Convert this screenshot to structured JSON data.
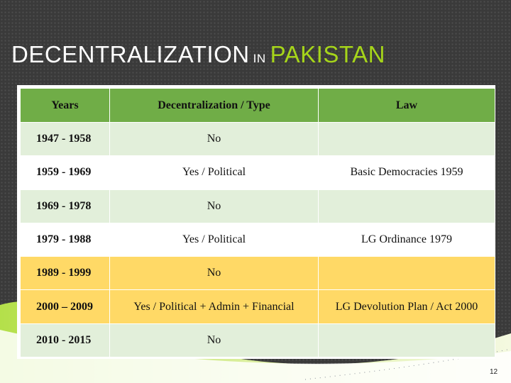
{
  "title": {
    "part1": "DECENTRALIZATION",
    "part2": "IN",
    "part3": "PAKISTAN"
  },
  "table": {
    "headers": [
      "Years",
      "Decentralization / Type",
      "Law"
    ],
    "rows": [
      {
        "years": "1947 - 1958",
        "type": "No",
        "law": ""
      },
      {
        "years": "1959 - 1969",
        "type": "Yes / Political",
        "law": "Basic Democracies 1959"
      },
      {
        "years": "1969 - 1978",
        "type": "No",
        "law": ""
      },
      {
        "years": "1979 - 1988",
        "type": "Yes / Political",
        "law": "LG Ordinance 1979"
      },
      {
        "years": "1989 - 1999",
        "type": "No",
        "law": ""
      },
      {
        "years": "2000 – 2009",
        "type": "Yes / Political + Admin + Financial",
        "law": "LG Devolution Plan / Act 2000"
      },
      {
        "years": "2010 - 2015",
        "type": "No",
        "law": ""
      }
    ]
  },
  "page_number": "12",
  "colors": {
    "background": "#3a3a3a",
    "accent_green": "#a6d51a",
    "header_green": "#70ad47",
    "row_light_green": "#e2efda",
    "highlight_yellow": "#ffd966"
  }
}
